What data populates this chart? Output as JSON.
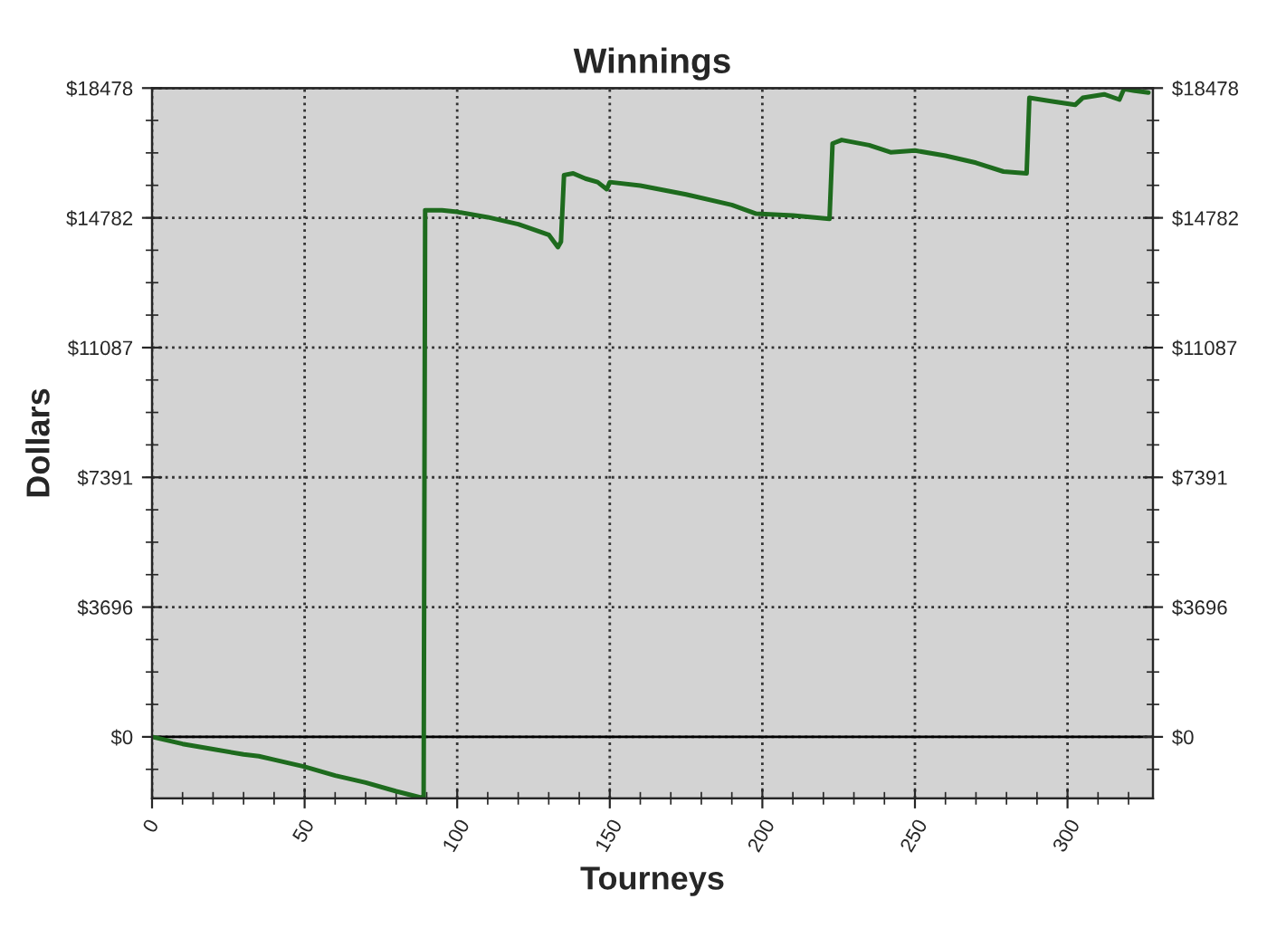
{
  "chart_data": {
    "type": "line",
    "title": "Winnings",
    "xlabel": "Tourneys",
    "ylabel": "Dollars",
    "x": [
      0,
      10,
      20,
      30,
      35,
      40,
      50,
      60,
      70,
      80,
      89,
      89.5,
      95,
      100,
      110,
      120,
      130,
      133,
      134,
      135,
      138,
      142,
      146,
      149,
      150,
      160,
      175,
      190,
      198,
      210,
      222,
      223,
      226,
      235,
      242,
      250,
      260,
      270,
      279,
      286.6,
      287.5,
      295,
      302.5,
      305,
      312,
      317,
      318.5,
      322,
      326.5
    ],
    "series": [
      {
        "color": "#1e6b1e",
        "values": [
          0,
          -200,
          -350,
          -500,
          -550,
          -650,
          -850,
          -1100,
          -1300,
          -1550,
          -1750,
          15000,
          15000,
          14950,
          14800,
          14600,
          14300,
          13950,
          14100,
          16000,
          16050,
          15900,
          15800,
          15600,
          15800,
          15700,
          15450,
          15150,
          14900,
          14850,
          14750,
          16900,
          17000,
          16850,
          16650,
          16700,
          16550,
          16350,
          16100,
          16050,
          18200,
          18100,
          18000,
          18200,
          18300,
          18150,
          18450,
          18400,
          18350
        ]
      }
    ],
    "xlim": [
      0,
      328
    ],
    "xticks": [
      0,
      50,
      100,
      150,
      200,
      250,
      300
    ],
    "ylim": [
      -1750,
      18478
    ],
    "yticks": [
      {
        "value": 0,
        "label": "$0"
      },
      {
        "value": 3696,
        "label": "$3696"
      },
      {
        "value": 7391,
        "label": "$7391"
      },
      {
        "value": 11087,
        "label": "$11087"
      },
      {
        "value": 14782,
        "label": "$14782"
      },
      {
        "value": 18478,
        "label": "$18478"
      }
    ],
    "y2lim": [
      -1750,
      18478
    ],
    "y2ticks": [
      {
        "value": 0,
        "label": "$0"
      },
      {
        "value": 3696,
        "label": "$3696"
      },
      {
        "value": 7391,
        "label": "$7391"
      },
      {
        "value": 11087,
        "label": "$11087"
      },
      {
        "value": 14782,
        "label": "$14782"
      },
      {
        "value": 18478,
        "label": "$18478"
      }
    ],
    "ref_lines": [
      {
        "axis": "y",
        "value": 0,
        "color": "#000000",
        "line_style": "solid"
      }
    ],
    "grid": true,
    "marker": "none",
    "line_style": "solid"
  }
}
